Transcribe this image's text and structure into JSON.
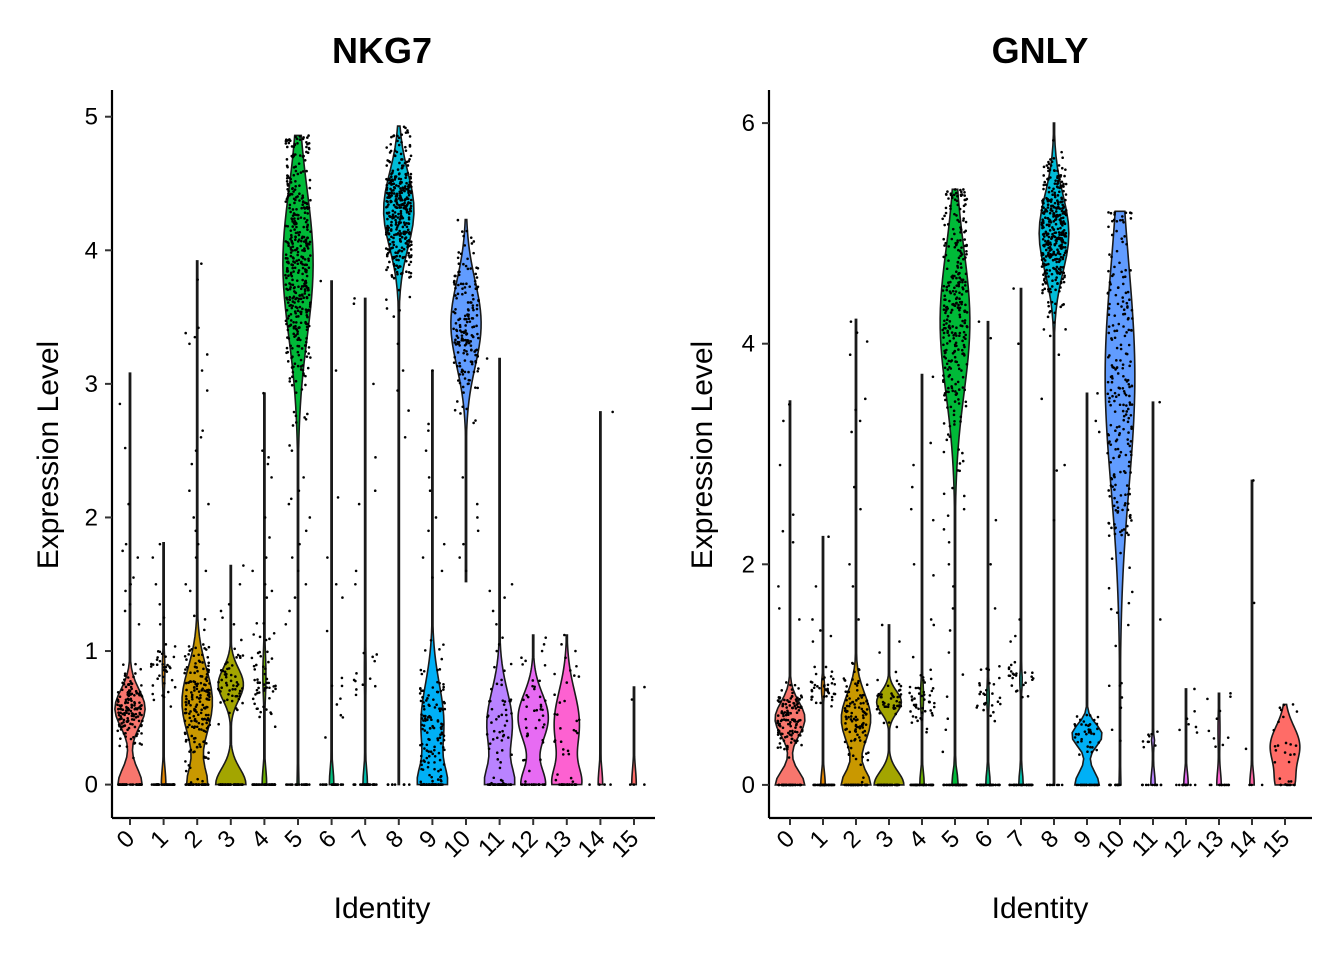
{
  "chart_data": [
    {
      "type": "violin",
      "title": "NKG7",
      "xlabel": "Identity",
      "ylabel": "Expression Level",
      "ylim": [
        -0.25,
        5.2
      ],
      "yticks": [
        0,
        1,
        2,
        3,
        4,
        5
      ],
      "categories": [
        "0",
        "1",
        "2",
        "3",
        "4",
        "5",
        "6",
        "7",
        "8",
        "9",
        "10",
        "11",
        "12",
        "13",
        "14",
        "15"
      ],
      "colors": [
        "#F8766D",
        "#E58700",
        "#C99800",
        "#A3A500",
        "#6BB100",
        "#00BA38",
        "#00BF7D",
        "#00C0AF",
        "#00BCD8",
        "#00B0F6",
        "#619CFF",
        "#B983FF",
        "#E76BF3",
        "#FD61D1",
        "#FF67A4",
        "#FF6C67"
      ],
      "groups": [
        {
          "max": 3.08,
          "zero_frac": 0.4,
          "mode": 0.57,
          "spread": 0.14,
          "mid": 0,
          "n": 260,
          "outliers": [
            2.85,
            2.52,
            2.1,
            1.8,
            1.75,
            1.7,
            1.55,
            1.5,
            1.45,
            1.35,
            1.3,
            1.2
          ]
        },
        {
          "max": 1.81,
          "zero_frac": 0.6,
          "mode": 0.85,
          "spread": 0.14,
          "mid": 0,
          "n": 90,
          "outliers": [
            1.8,
            1.7,
            1.5,
            1.35,
            1.25,
            1.2
          ]
        },
        {
          "max": 3.92,
          "zero_frac": 0.35,
          "mode": 0.62,
          "spread": 0.25,
          "mid": 0,
          "n": 280,
          "outliers": [
            3.9,
            3.78,
            3.42,
            3.38,
            3.35,
            3.3,
            3.22,
            3.1,
            2.95,
            2.65,
            2.6,
            2.5,
            2.4,
            2.2,
            2.1,
            2.0,
            1.9,
            1.8,
            1.7,
            1.6,
            1.5,
            1.45
          ]
        },
        {
          "max": 1.64,
          "zero_frac": 0.5,
          "mode": 0.75,
          "spread": 0.12,
          "mid": 0,
          "n": 110,
          "outliers": [
            1.64,
            1.5,
            1.35,
            1.3,
            1.25,
            1.2
          ]
        },
        {
          "max": 2.93,
          "zero_frac": 0.55,
          "mode": 0.82,
          "spread": 0.18,
          "mid": 0,
          "n": 120,
          "outliers": [
            2.93,
            2.5,
            2.45,
            2.4,
            2.3,
            2.0,
            1.85,
            1.7,
            1.6,
            1.5,
            1.45,
            1.4
          ]
        },
        {
          "max": 4.86,
          "zero_frac": 0.05,
          "mode": 3.9,
          "spread": 0.55,
          "mid": 0,
          "n": 450,
          "outliers": [
            2.5,
            2.3,
            2.2,
            2.1,
            2.0,
            1.9,
            1.8,
            1.7,
            1.6,
            1.5,
            1.4,
            1.3,
            1.2
          ]
        },
        {
          "max": 3.77,
          "zero_frac": 0.75,
          "mode": 0.7,
          "spread": 0.15,
          "mid": 0,
          "n": 30,
          "outliers": [
            3.77,
            3.1,
            2.15,
            1.7,
            1.5,
            1.4,
            1.15
          ]
        },
        {
          "max": 3.64,
          "zero_frac": 0.7,
          "mode": 0.85,
          "spread": 0.25,
          "mid": 0,
          "n": 40,
          "outliers": [
            3.64,
            3.6,
            3.0,
            2.45,
            2.2,
            2.1,
            1.6,
            1.5
          ]
        },
        {
          "max": 4.93,
          "zero_frac": 0.02,
          "mode": 4.3,
          "spread": 0.28,
          "mid": 0,
          "n": 380,
          "outliers": [
            3.3,
            3.1,
            2.95,
            2.8,
            2.6
          ]
        },
        {
          "max": 3.1,
          "zero_frac": 0.45,
          "mode": 0.45,
          "spread": 0.3,
          "mid": 0,
          "n": 230,
          "outliers": [
            3.1,
            2.7,
            2.65,
            2.5,
            2.3,
            2.2,
            2.0,
            1.9,
            1.8,
            1.7,
            1.6,
            1.55
          ]
        },
        {
          "max": 4.23,
          "zero_frac": 0.0,
          "min": 1.52,
          "mode": 3.45,
          "spread": 0.32,
          "mid": 0,
          "n": 180,
          "outliers": [
            2.3,
            2.1,
            2.0,
            1.9,
            1.8,
            1.7,
            1.6
          ]
        },
        {
          "max": 3.19,
          "zero_frac": 0.45,
          "mode": 0.45,
          "spread": 0.25,
          "mid": 0,
          "n": 90,
          "outliers": [
            3.19,
            1.5,
            1.45,
            1.4,
            1.3,
            1.2,
            1.1,
            1.05,
            1.0
          ]
        },
        {
          "max": 1.12,
          "zero_frac": 0.4,
          "mode": 0.5,
          "spread": 0.18,
          "mid": 0,
          "n": 60,
          "outliers": [
            1.1,
            1.05,
            1.0,
            0.95,
            0.9
          ]
        },
        {
          "max": 1.12,
          "zero_frac": 0.45,
          "mode": 0.45,
          "spread": 0.25,
          "mid": 0,
          "n": 50,
          "outliers": [
            1.12,
            1.05,
            1.0,
            0.95
          ]
        },
        {
          "max": 2.79,
          "zero_frac": 0.9,
          "mode": 0.45,
          "spread": 0.05,
          "mid": 0,
          "n": 4,
          "outliers": [
            2.79
          ]
        },
        {
          "max": 0.73,
          "zero_frac": 0.8,
          "mode": 0.5,
          "spread": 0.18,
          "mid": 0,
          "n": 4,
          "outliers": [
            0.73
          ]
        }
      ]
    },
    {
      "type": "violin",
      "title": "GNLY",
      "xlabel": "Identity",
      "ylabel": "Expression Level",
      "ylim": [
        -0.3,
        6.3
      ],
      "yticks": [
        0,
        2,
        4,
        6
      ],
      "categories": [
        "0",
        "1",
        "2",
        "3",
        "4",
        "5",
        "6",
        "7",
        "8",
        "9",
        "10",
        "11",
        "12",
        "13",
        "14",
        "15"
      ],
      "colors": [
        "#F8766D",
        "#E58700",
        "#C99800",
        "#A3A500",
        "#6BB100",
        "#00BA38",
        "#00BF7D",
        "#00C0AF",
        "#00BCD8",
        "#00B0F6",
        "#619CFF",
        "#B983FF",
        "#E76BF3",
        "#FD61D1",
        "#FF67A4",
        "#FF6C67"
      ],
      "groups": [
        {
          "max": 3.48,
          "zero_frac": 0.45,
          "mode": 0.6,
          "spread": 0.15,
          "mid": 0,
          "n": 240,
          "outliers": [
            3.45,
            3.3,
            2.9,
            2.45,
            2.3,
            2.2,
            1.8,
            1.6,
            1.5
          ]
        },
        {
          "max": 2.25,
          "zero_frac": 0.55,
          "mode": 0.88,
          "spread": 0.1,
          "mid": 0,
          "n": 90,
          "outliers": [
            2.25,
            1.8,
            1.5,
            1.4,
            1.35,
            1.3
          ]
        },
        {
          "max": 4.22,
          "zero_frac": 0.45,
          "mode": 0.6,
          "spread": 0.22,
          "mid": 0,
          "n": 200,
          "outliers": [
            4.2,
            4.1,
            4.02,
            3.9,
            3.5,
            3.4,
            3.3,
            3.2,
            2.7,
            2.5,
            2.0,
            1.8,
            1.5
          ]
        },
        {
          "max": 1.45,
          "zero_frac": 0.5,
          "mode": 0.75,
          "spread": 0.1,
          "mid": 0,
          "n": 90,
          "outliers": [
            1.45,
            1.3,
            1.2
          ]
        },
        {
          "max": 3.72,
          "zero_frac": 0.55,
          "mode": 0.8,
          "spread": 0.15,
          "mid": 0,
          "n": 110,
          "outliers": [
            3.7,
            3.1,
            2.9,
            2.7,
            2.5,
            2.4,
            2.0,
            1.9,
            1.5,
            1.45
          ]
        },
        {
          "max": 5.4,
          "zero_frac": 0.15,
          "mode": 4.2,
          "spread": 0.65,
          "mid": 0,
          "n": 360,
          "outliers": [
            2.5,
            2.2,
            2.0,
            1.8,
            1.6,
            1.4,
            1.2,
            1.0,
            0.8,
            0.6,
            0.5,
            0.3
          ]
        },
        {
          "max": 4.2,
          "zero_frac": 0.6,
          "mode": 0.8,
          "spread": 0.12,
          "mid": 0,
          "n": 70,
          "outliers": [
            4.2,
            4.05,
            2.4,
            2.0,
            1.6
          ]
        },
        {
          "max": 4.5,
          "zero_frac": 0.6,
          "mode": 0.95,
          "spread": 0.1,
          "mid": 0,
          "n": 60,
          "outliers": [
            4.5,
            4.0,
            1.5,
            1.35,
            1.3
          ]
        },
        {
          "max": 6.0,
          "zero_frac": 0.02,
          "mode": 5.0,
          "spread": 0.35,
          "mid": 0,
          "n": 380,
          "outliers": [
            3.9,
            3.5,
            2.9,
            2.85,
            2.4
          ]
        },
        {
          "max": 3.55,
          "zero_frac": 0.4,
          "mode": 0.45,
          "spread": 0.1,
          "mid": 0,
          "n": 70,
          "outliers": [
            3.55,
            3.3,
            3.2
          ]
        },
        {
          "max": 5.2,
          "zero_frac": 0.05,
          "mode": 3.7,
          "spread": 1.0,
          "mid": 0,
          "n": 260,
          "outliers": [
            0.9,
            0.7,
            0.5,
            0.4
          ]
        },
        {
          "max": 3.47,
          "zero_frac": 0.55,
          "mode": 0.4,
          "spread": 0.05,
          "mid": 0,
          "n": 20,
          "outliers": [
            3.47,
            1.5
          ]
        },
        {
          "max": 0.87,
          "zero_frac": 0.75,
          "mode": 0.5,
          "spread": 0.1,
          "mid": 0,
          "n": 15,
          "outliers": [
            0.87,
            0.6,
            0.55
          ]
        },
        {
          "max": 0.83,
          "zero_frac": 0.65,
          "mode": 0.5,
          "spread": 0.2,
          "mid": 0,
          "n": 20,
          "outliers": [
            0.83,
            0.8,
            0.78
          ]
        },
        {
          "max": 2.76,
          "zero_frac": 0.85,
          "mode": 0.3,
          "spread": 0.05,
          "mid": 0,
          "n": 4,
          "outliers": [
            2.76,
            1.65
          ]
        },
        {
          "max": 0.73,
          "zero_frac": 0.3,
          "mode": 0.35,
          "spread": 0.18,
          "mid": 0,
          "n": 30,
          "outliers": [
            0.73,
            0.7
          ]
        }
      ]
    }
  ]
}
